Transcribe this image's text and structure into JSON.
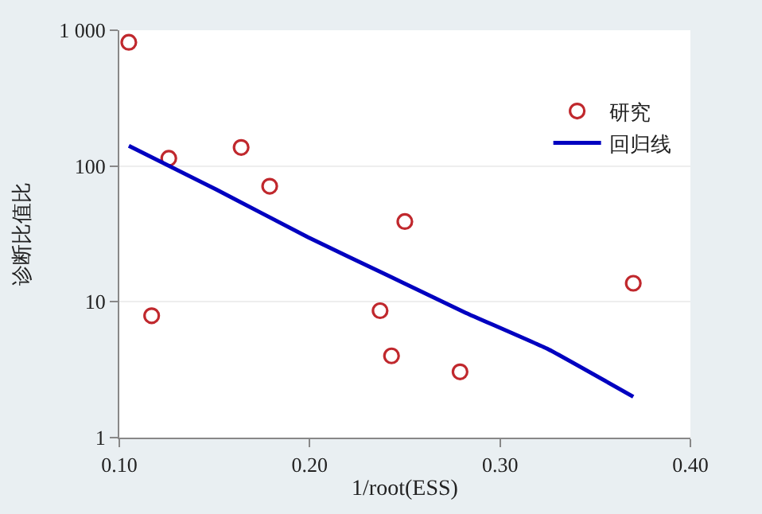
{
  "chart_data": {
    "type": "scatter",
    "xlabel": "1/root(ESS)",
    "ylabel": "诊断比值比",
    "log": "y",
    "grid": "y",
    "legend": "top right",
    "xlim": [
      0.1,
      0.4
    ],
    "xticks": [
      {
        "value": 0.1,
        "label": "0.10"
      },
      {
        "value": 0.2,
        "label": "0.20"
      },
      {
        "value": 0.3,
        "label": "0.30"
      },
      {
        "value": 0.4,
        "label": "0.40"
      }
    ],
    "ylim": [
      1,
      1000
    ],
    "yticks": [
      1,
      10,
      100,
      {
        "value": 1000,
        "label": "1 000"
      }
    ],
    "series": [
      {
        "name": "研究",
        "marker": "circle",
        "color": "#c0282d",
        "x": [
          0.105,
          0.117,
          0.126,
          0.164,
          0.179,
          0.237,
          0.243,
          0.25,
          0.279,
          0.37
        ],
        "values": [
          815,
          7.9,
          114,
          137,
          71,
          8.6,
          4.0,
          39,
          3.05,
          13.7
        ]
      },
      {
        "name": "回归线",
        "type": "line",
        "marker": "none",
        "line_style": "solid",
        "color": "#0000c0",
        "x": [
          0.105,
          0.151,
          0.199,
          0.242,
          0.282,
          0.325,
          0.37
        ],
        "values": [
          141,
          67,
          30,
          15.4,
          8.3,
          4.5,
          2.0
        ]
      }
    ]
  }
}
